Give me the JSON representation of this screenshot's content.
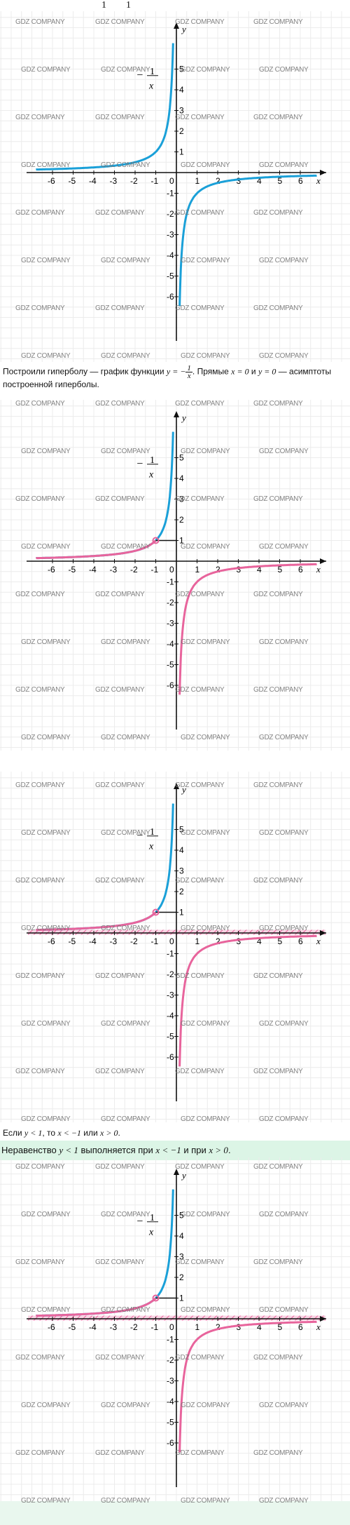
{
  "top_fragment": [
    "1",
    "1"
  ],
  "graphs": [
    {
      "id": "g1",
      "left_color": "#1aa0d8",
      "right_color": "#1aa0d8",
      "highlight": false,
      "hatch": false,
      "point": false
    },
    {
      "id": "g2",
      "left_color": "#e8649c",
      "right_color": "#e8649c",
      "highlight": "up",
      "hatch": false,
      "point": true
    },
    {
      "id": "g3",
      "left_color": "#e8649c",
      "right_color": "#e8649c",
      "highlight": "up",
      "hatch": true,
      "point": true
    },
    {
      "id": "g4",
      "left_color": "#e8649c",
      "right_color": "#e8649c",
      "highlight": "up",
      "hatch": true,
      "point": true
    }
  ],
  "axes": {
    "x_label": "x",
    "y_label": "y",
    "x_ticks": [
      "-6",
      "-5",
      "-4",
      "-3",
      "-2",
      "-1",
      "0",
      "1",
      "2",
      "3",
      "4",
      "5",
      "6"
    ],
    "y_ticks": [
      "5",
      "4",
      "3",
      "2",
      "1",
      "-1",
      "-2",
      "-3",
      "-4",
      "-5",
      "-6"
    ],
    "func_label_num": "1",
    "func_label_den": "x",
    "func_label_sign": "−"
  },
  "text1": {
    "part1": "Построили гиперболу — график функции ",
    "expr1": "y = −",
    "frac_num": "1",
    "frac_den": "x",
    "part2": ". Прямые ",
    "expr2": "x = 0",
    "part3": " и ",
    "expr3": "y = 0",
    "part4": " — асимптоты построенной гиперболы."
  },
  "text2": {
    "part1": "Если ",
    "expr1": "y < 1",
    "part2": ", то ",
    "expr2": "x < −1",
    "part3": " или ",
    "expr3": "x > 0",
    "part4": "."
  },
  "answer": {
    "part1": "Неравенство ",
    "expr1": "y < 1",
    "part2": " выполняется при ",
    "expr2": "x < −1",
    "part3": " и при ",
    "expr3": "x > 0",
    "part4": "."
  },
  "watermark": "GDZ COMPANY",
  "colors": {
    "blue": "#1aa0d8",
    "pink": "#e8649c",
    "grid": "#e3e3e3",
    "answer_bg": "#dcf5e6"
  }
}
